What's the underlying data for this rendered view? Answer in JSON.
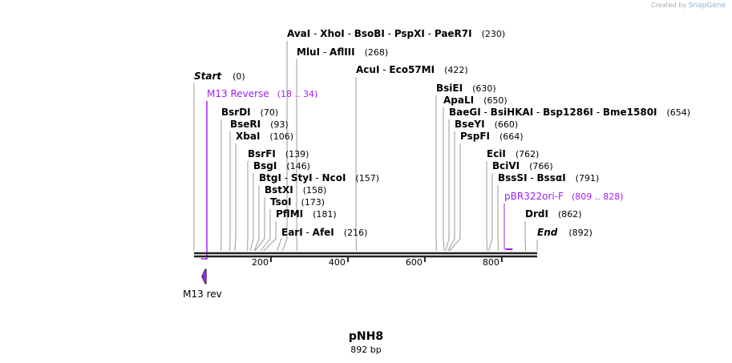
{
  "credit": {
    "prefix": "Created by",
    "brand": "SnapGene"
  },
  "map": {
    "name": "pNH8",
    "length_label": "892 bp",
    "length": 892,
    "start": {
      "label": "Start",
      "pos": "(0)"
    },
    "end": {
      "label": "End",
      "pos": "(892)"
    },
    "ticks": [
      200,
      400,
      600,
      800
    ],
    "colors": {
      "feature": "#a020f0",
      "line": "#999999",
      "axis": "#222222"
    }
  },
  "enzymes": [
    {
      "names": [
        "AvaI",
        "XhoI",
        "BsoBI",
        "PspXI",
        "PaeR7I"
      ],
      "site": 230,
      "pos": "(230)"
    },
    {
      "names": [
        "MluI",
        "AflIII"
      ],
      "site": 268,
      "pos": "(268)"
    },
    {
      "names": [
        "AcuI",
        "Eco57MI"
      ],
      "site": 422,
      "pos": "(422)"
    },
    {
      "names": [
        "BsrDI"
      ],
      "site": 70,
      "pos": "(70)"
    },
    {
      "names": [
        "BseRI"
      ],
      "site": 93,
      "pos": "(93)"
    },
    {
      "names": [
        "XbaI"
      ],
      "site": 106,
      "pos": "(106)"
    },
    {
      "names": [
        "BsrFI"
      ],
      "site": 139,
      "pos": "(139)"
    },
    {
      "names": [
        "BsgI"
      ],
      "site": 146,
      "pos": "(146)"
    },
    {
      "names": [
        "BtgI",
        "StyI",
        "NcoI"
      ],
      "site": 157,
      "pos": "(157)"
    },
    {
      "names": [
        "BstXI"
      ],
      "site": 158,
      "pos": "(158)"
    },
    {
      "names": [
        "TsoI"
      ],
      "site": 173,
      "pos": "(173)"
    },
    {
      "names": [
        "PflMI"
      ],
      "site": 181,
      "pos": "(181)"
    },
    {
      "names": [
        "EarI",
        "AfeI"
      ],
      "site": 216,
      "pos": "(216)"
    },
    {
      "names": [
        "BsiEI"
      ],
      "site": 630,
      "pos": "(630)"
    },
    {
      "names": [
        "ApaLI"
      ],
      "site": 650,
      "pos": "(650)"
    },
    {
      "names": [
        "BaeGI",
        "BsiHKAI",
        "Bsp1286I",
        "Bme1580I"
      ],
      "site": 654,
      "pos": "(654)"
    },
    {
      "names": [
        "BseYI"
      ],
      "site": 660,
      "pos": "(660)"
    },
    {
      "names": [
        "PspFI"
      ],
      "site": 664,
      "pos": "(664)"
    },
    {
      "names": [
        "EciI"
      ],
      "site": 762,
      "pos": "(762)"
    },
    {
      "names": [
        "BciVI"
      ],
      "site": 766,
      "pos": "(766)"
    },
    {
      "names": [
        "BssSI",
        "BssαI"
      ],
      "site": 791,
      "pos": "(791)"
    },
    {
      "names": [
        "DrdI"
      ],
      "site": 862,
      "pos": "(862)"
    }
  ],
  "primers": [
    {
      "name": "M13 Reverse",
      "range": "(18 .. 34)",
      "start": 18,
      "end": 34,
      "strand": "reverse"
    },
    {
      "name": "pBR322ori-F",
      "range": "(809 .. 828)",
      "start": 809,
      "end": 828,
      "strand": "forward"
    }
  ],
  "features": [
    {
      "name": "M13 rev",
      "start": 18,
      "end": 34,
      "strand": "reverse"
    }
  ]
}
